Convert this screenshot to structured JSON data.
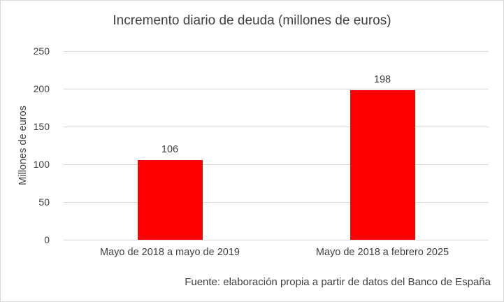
{
  "chart_data": {
    "type": "bar",
    "title": "Incremento diario de deuda (millones de euros)",
    "categories": [
      "Mayo de 2018 a mayo de 2019",
      "Mayo de 2018 a febrero 2025"
    ],
    "values": [
      106,
      198
    ],
    "xlabel": "",
    "ylabel": "Millones de euros",
    "ylim": [
      0,
      250
    ],
    "ytick_labels": [
      "250",
      "200",
      "150",
      "100",
      "50",
      "0"
    ],
    "bar_color": "#ff0000",
    "grid": true,
    "legend": "none",
    "source_note": "Fuente: elaboración propia a partir de datos del Banco de España"
  }
}
